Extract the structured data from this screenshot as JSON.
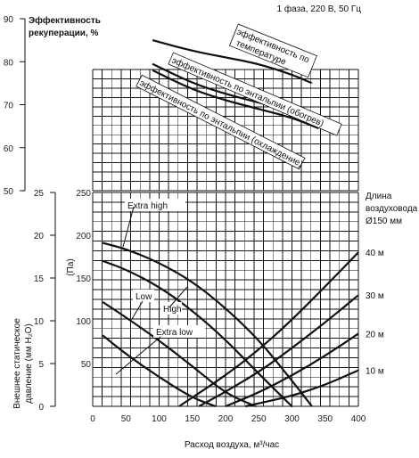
{
  "header_note": "1 фаза, 220 В, 50 Гц",
  "chart_data": [
    {
      "type": "line",
      "title": "",
      "ylabel": "Эффективность рекуперации, %",
      "y_ticks": [
        "50",
        "60",
        "70",
        "80",
        "90"
      ],
      "ylim": [
        50,
        90
      ],
      "xlim": [
        0,
        400
      ],
      "grid": true,
      "series": [
        {
          "name": "эффективность по температуре",
          "x": [
            90,
            150,
            200,
            250,
            300,
            330
          ],
          "y": [
            85,
            82.5,
            81,
            79.5,
            77,
            75
          ]
        },
        {
          "name": "эффективность по энтальпии (обогрев)",
          "x": [
            90,
            150,
            200,
            250,
            300,
            340
          ],
          "y": [
            79.5,
            75,
            72.5,
            70.5,
            68.5,
            66.5
          ]
        },
        {
          "name": "эффективность по энтальпии (охлаждение)",
          "x": [
            90,
            150,
            200,
            250,
            300,
            340
          ],
          "y": [
            78,
            73.5,
            71,
            69,
            67,
            64.5
          ]
        }
      ]
    },
    {
      "type": "line",
      "title": "",
      "xlabel": "Расход воздуха, м³/час",
      "ylabel_left": "Внешнее статическое давление (мм H₂O)",
      "ylabel_right": "(Па)",
      "x_ticks": [
        "0",
        "50",
        "100",
        "150",
        "200",
        "250",
        "300",
        "350",
        "400"
      ],
      "y_ticks_left": [
        "0",
        "5",
        "10",
        "15",
        "20",
        "25"
      ],
      "y_ticks_right": [
        "0",
        "50",
        "100",
        "150",
        "200",
        "250"
      ],
      "xlim": [
        0,
        400
      ],
      "ylim": [
        0,
        250
      ],
      "grid": true,
      "duct_legend_title": "Длина воздуховода Ø150 мм",
      "series": [
        {
          "name": "Extra high",
          "x": [
            15,
            50,
            100,
            150,
            200,
            250,
            300,
            330
          ],
          "y": [
            191,
            184,
            168,
            146,
            115,
            78,
            30,
            0
          ]
        },
        {
          "name": "High",
          "x": [
            15,
            50,
            100,
            150,
            200,
            250,
            300
          ],
          "y": [
            170,
            160,
            140,
            112,
            78,
            38,
            0
          ]
        },
        {
          "name": "Low",
          "x": [
            15,
            50,
            100,
            150,
            200,
            245
          ],
          "y": [
            122,
            104,
            77,
            47,
            15,
            0
          ]
        },
        {
          "name": "Extra low",
          "x": [
            15,
            50,
            100,
            150,
            185
          ],
          "y": [
            83,
            61,
            34,
            10,
            0
          ]
        },
        {
          "name": "40 м",
          "x": [
            130,
            200,
            250,
            300,
            350,
            400
          ],
          "y": [
            0,
            36,
            66,
            101,
            140,
            180
          ]
        },
        {
          "name": "30 м",
          "x": [
            160,
            200,
            250,
            300,
            350,
            400
          ],
          "y": [
            0,
            17,
            40,
            68,
            98,
            130
          ]
        },
        {
          "name": "20 м",
          "x": [
            200,
            250,
            300,
            350,
            400
          ],
          "y": [
            0,
            16,
            36,
            59,
            85
          ]
        },
        {
          "name": "10 м",
          "x": [
            230,
            300,
            350,
            400
          ],
          "y": [
            0,
            12,
            25,
            42
          ]
        }
      ]
    }
  ]
}
